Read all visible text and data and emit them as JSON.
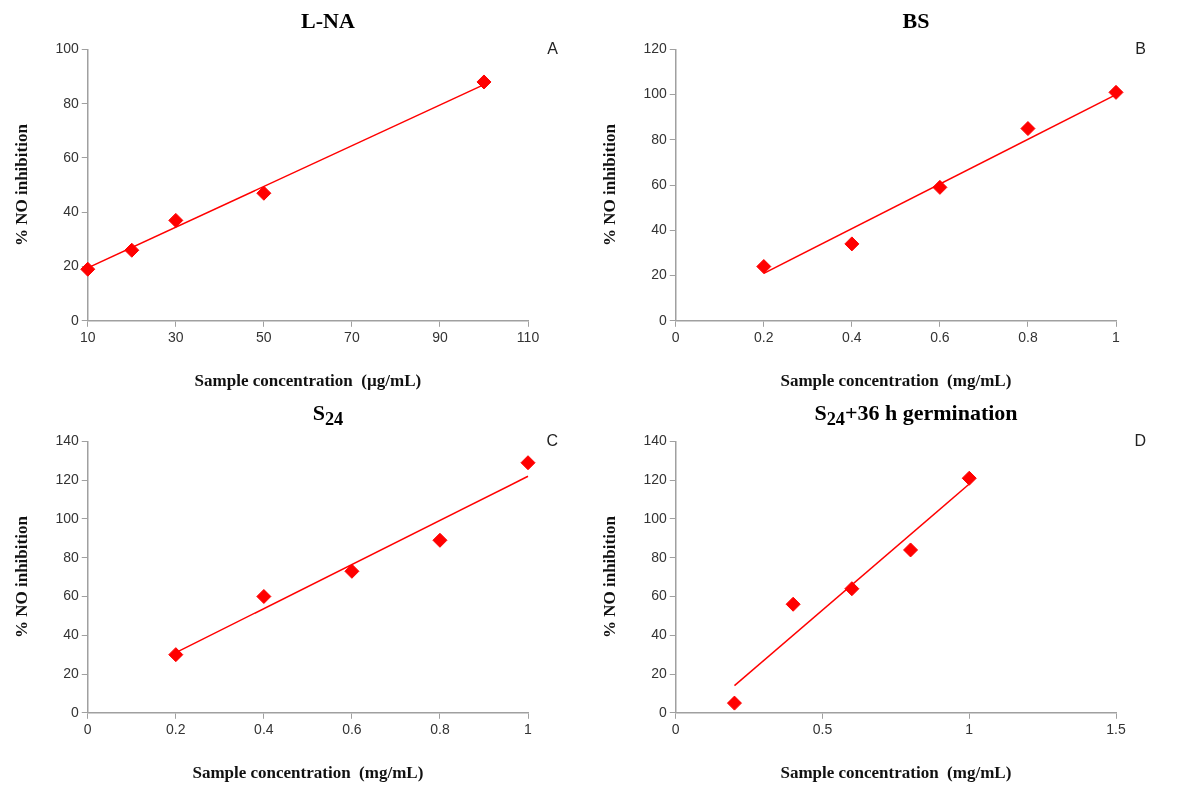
{
  "chart_data": [
    {
      "type": "scatter",
      "title": "L-NA",
      "xlabel": "Sample concentration  (µg/mL)",
      "ylabel": "% NO inhibition",
      "annotations": [
        "A"
      ],
      "xlim": [
        10,
        110
      ],
      "xticks": [
        10,
        30,
        50,
        70,
        90,
        110
      ],
      "ylim": [
        0,
        100
      ],
      "yticks": [
        0,
        20,
        40,
        60,
        80,
        100
      ],
      "grid": false,
      "series": [
        {
          "type": "scatter",
          "color": "#ff0000",
          "marker": "diamond",
          "x": [
            10,
            20,
            30,
            50,
            100
          ],
          "values": [
            19,
            26,
            37,
            47,
            88
          ]
        },
        {
          "type": "line",
          "color": "#ff0000",
          "marker": "none",
          "line_style": "solid",
          "x": [
            10,
            100
          ],
          "values": [
            19.5,
            87
          ]
        }
      ]
    },
    {
      "type": "scatter",
      "title": "BS",
      "xlabel": "Sample concentration  (mg/mL)",
      "ylabel": "% NO inhibition",
      "annotations": [
        "B"
      ],
      "xlim": [
        0,
        1
      ],
      "xticks": [
        0,
        0.2,
        0.4,
        0.6,
        0.8,
        1
      ],
      "ylim": [
        0,
        120
      ],
      "yticks": [
        0,
        20,
        40,
        60,
        80,
        100,
        120
      ],
      "grid": false,
      "series": [
        {
          "type": "scatter",
          "color": "#ff0000",
          "marker": "diamond",
          "x": [
            0.2,
            0.4,
            0.6,
            0.8,
            1
          ],
          "values": [
            24,
            34,
            59,
            85,
            101
          ]
        },
        {
          "type": "line",
          "color": "#ff0000",
          "marker": "none",
          "line_style": "solid",
          "x": [
            0.2,
            1
          ],
          "values": [
            21,
            100
          ]
        }
      ]
    },
    {
      "type": "scatter",
      "title": "S$_{24}$",
      "xlabel": "Sample concentration  (mg/mL)",
      "ylabel": "% NO inhibition",
      "annotations": [
        "C"
      ],
      "xlim": [
        0,
        1
      ],
      "xticks": [
        0,
        0.2,
        0.4,
        0.6,
        0.8,
        1
      ],
      "ylim": [
        0,
        140
      ],
      "yticks": [
        0,
        20,
        40,
        60,
        80,
        100,
        120,
        140
      ],
      "grid": false,
      "series": [
        {
          "type": "scatter",
          "color": "#ff0000",
          "marker": "diamond",
          "x": [
            0.2,
            0.4,
            0.6,
            0.8,
            1
          ],
          "values": [
            30,
            60,
            73,
            89,
            129
          ]
        },
        {
          "type": "line",
          "color": "#ff0000",
          "marker": "none",
          "line_style": "solid",
          "x": [
            0.2,
            1
          ],
          "values": [
            31,
            122
          ]
        }
      ]
    },
    {
      "type": "scatter",
      "title": "S$_{24}$+36 h germination",
      "xlabel": "Sample concentration  (mg/mL)",
      "ylabel": "% NO inhibition",
      "annotations": [
        "D"
      ],
      "xlim": [
        0,
        1.5
      ],
      "xticks": [
        0,
        0.5,
        1,
        1.5
      ],
      "ylim": [
        0,
        140
      ],
      "yticks": [
        0,
        20,
        40,
        60,
        80,
        100,
        120,
        140
      ],
      "grid": false,
      "series": [
        {
          "type": "scatter",
          "color": "#ff0000",
          "marker": "diamond",
          "x": [
            0.2,
            0.4,
            0.6,
            0.8,
            1
          ],
          "values": [
            5,
            56,
            64,
            84,
            121
          ]
        },
        {
          "type": "line",
          "color": "#ff0000",
          "marker": "none",
          "line_style": "solid",
          "x": [
            0.2,
            1
          ],
          "values": [
            14,
            118
          ]
        }
      ]
    }
  ]
}
